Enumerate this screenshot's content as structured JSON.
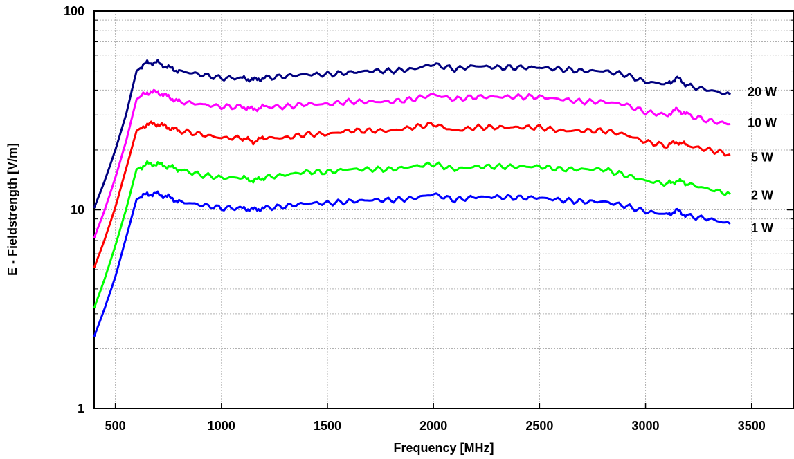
{
  "chart_data": {
    "type": "line",
    "title": "",
    "xlabel": "Frequency [MHz]",
    "ylabel": "E - Fieldstrength [V/m]",
    "xlim": [
      400,
      3700
    ],
    "ylim": [
      1,
      100
    ],
    "yscale": "log",
    "grid": true,
    "x_ticks": [
      500,
      1000,
      1500,
      2000,
      2500,
      3000,
      3500
    ],
    "y_ticks": [
      1,
      10,
      100
    ],
    "x": [
      400,
      450,
      500,
      550,
      600,
      650,
      700,
      750,
      800,
      900,
      1000,
      1100,
      1150,
      1200,
      1300,
      1400,
      1500,
      1600,
      1700,
      1800,
      1900,
      2000,
      2100,
      2200,
      2300,
      2400,
      2500,
      2600,
      2700,
      2800,
      2900,
      3000,
      3100,
      3150,
      3200,
      3300,
      3400
    ],
    "series": [
      {
        "name": "20 W",
        "color": "#00007f",
        "values": [
          10.2,
          14,
          20,
          30,
          50,
          55,
          55,
          52,
          50,
          48,
          46,
          46,
          45,
          46,
          47,
          48,
          48,
          49,
          50,
          50,
          51,
          54,
          51,
          53,
          52,
          52,
          52,
          51,
          50,
          50,
          48,
          44,
          43,
          46,
          42,
          40,
          38
        ]
      },
      {
        "name": "10 W",
        "color": "#ff00ff",
        "values": [
          7.2,
          10,
          14.5,
          22,
          36,
          39,
          39,
          37,
          35,
          34,
          33,
          33,
          32,
          33,
          33,
          34,
          34,
          35,
          35,
          35,
          36,
          38,
          36,
          37,
          37,
          37,
          37,
          36,
          35,
          35,
          34,
          31,
          30,
          32,
          30,
          28,
          27
        ]
      },
      {
        "name": "5 W",
        "color": "#ff0000",
        "values": [
          5.1,
          7.1,
          10.3,
          16,
          25,
          27,
          27,
          26,
          25,
          24,
          23,
          23,
          22,
          23,
          23,
          24,
          24,
          25,
          25,
          25,
          26,
          27,
          25,
          26,
          26,
          26,
          26,
          25,
          25,
          25,
          24,
          22,
          21,
          22,
          21,
          20,
          19
        ]
      },
      {
        "name": "2 W",
        "color": "#00ff00",
        "values": [
          3.2,
          4.5,
          6.6,
          10,
          16,
          17,
          17,
          16.5,
          16,
          15,
          14.5,
          14.5,
          14,
          14.5,
          15,
          15.5,
          15.5,
          16,
          16,
          16,
          16.5,
          17,
          16,
          16.5,
          16.5,
          16.5,
          16.5,
          16,
          16,
          16,
          15,
          14,
          13.5,
          14,
          13.5,
          12.7,
          12
        ]
      },
      {
        "name": "1 W",
        "color": "#0000ff",
        "values": [
          2.3,
          3.2,
          4.6,
          7.2,
          11.3,
          12,
          12,
          11.6,
          11,
          10.6,
          10.2,
          10.2,
          10,
          10.2,
          10.4,
          10.8,
          10.8,
          11,
          11.2,
          11.2,
          11.4,
          12,
          11.2,
          11.6,
          11.6,
          11.5,
          11.5,
          11.2,
          11,
          11,
          10.5,
          9.8,
          9.5,
          9.9,
          9.3,
          9,
          8.5
        ]
      }
    ]
  }
}
